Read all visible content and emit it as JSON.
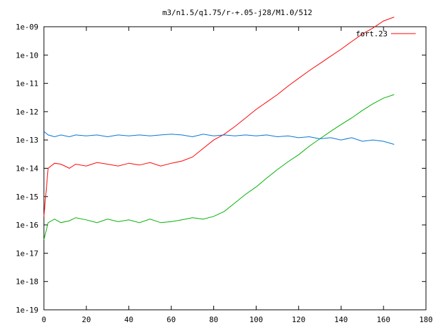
{
  "chart_data": {
    "type": "line",
    "title": "m3/n1.5/q1.75/r-+.05-j28/M1.0/512",
    "xlabel": "",
    "ylabel": "",
    "xlim": [
      0,
      180
    ],
    "ylim": [
      1e-19,
      1e-09
    ],
    "yscale": "log",
    "grid": false,
    "legend": "top-right",
    "x_ticks": [
      0,
      20,
      40,
      60,
      80,
      100,
      120,
      140,
      160,
      180
    ],
    "x_tick_labels": [
      "0",
      "20",
      "40",
      "60",
      "80",
      "100",
      "120",
      "140",
      "160",
      "180"
    ],
    "y_ticks": [
      1e-19,
      1e-18,
      1e-17,
      1e-16,
      1e-15,
      1e-14,
      1e-13,
      1e-12,
      1e-11,
      1e-10,
      1e-09
    ],
    "y_tick_labels": [
      "1e-19",
      "1e-18",
      "1e-17",
      "1e-16",
      "1e-15",
      "1e-14",
      "1e-13",
      "1e-12",
      "1e-11",
      "1e-10",
      "1e-09"
    ],
    "series": [
      {
        "name": "fort.23",
        "color": "#ff0000",
        "x": [
          0,
          2,
          5,
          8,
          12,
          15,
          20,
          25,
          30,
          35,
          40,
          45,
          50,
          55,
          60,
          65,
          70,
          75,
          80,
          85,
          90,
          95,
          100,
          105,
          110,
          115,
          120,
          125,
          130,
          135,
          140,
          145,
          150,
          155,
          160,
          165
        ],
        "y": [
          2e-16,
          1e-14,
          1.5e-14,
          1.4e-14,
          1e-14,
          1.4e-14,
          1.2e-14,
          1.6e-14,
          1.4e-14,
          1.2e-14,
          1.5e-14,
          1.3e-14,
          1.6e-14,
          1.2e-14,
          1.5e-14,
          1.8e-14,
          2.5e-14,
          5e-14,
          1e-13,
          1.6e-13,
          3e-13,
          6e-13,
          1.2e-12,
          2.2e-12,
          4e-12,
          8e-12,
          1.5e-11,
          2.8e-11,
          5e-11,
          9e-11,
          1.6e-10,
          3e-10,
          5.5e-10,
          9e-10,
          1.6e-09,
          2.2e-09
        ]
      },
      {
        "name": "",
        "color": "#00b000",
        "x": [
          0,
          2,
          5,
          8,
          12,
          15,
          20,
          25,
          30,
          35,
          40,
          45,
          50,
          55,
          60,
          65,
          70,
          75,
          80,
          85,
          90,
          95,
          100,
          105,
          110,
          115,
          120,
          125,
          130,
          135,
          140,
          145,
          150,
          155,
          160,
          165
        ],
        "y": [
          3e-17,
          1.2e-16,
          1.6e-16,
          1.2e-16,
          1.4e-16,
          1.8e-16,
          1.5e-16,
          1.2e-16,
          1.6e-16,
          1.3e-16,
          1.5e-16,
          1.2e-16,
          1.6e-16,
          1.2e-16,
          1.3e-16,
          1.5e-16,
          1.8e-16,
          1.6e-16,
          2e-16,
          3e-16,
          6e-16,
          1.2e-15,
          2.2e-15,
          4.5e-15,
          9e-15,
          1.7e-14,
          3e-14,
          6e-14,
          1.1e-13,
          2e-13,
          3.5e-13,
          6e-13,
          1.1e-12,
          1.9e-12,
          3e-12,
          4e-12
        ]
      },
      {
        "name": "",
        "color": "#0072d6",
        "x": [
          0,
          2,
          5,
          8,
          12,
          15,
          20,
          25,
          30,
          35,
          40,
          45,
          50,
          55,
          60,
          65,
          70,
          75,
          80,
          85,
          90,
          95,
          100,
          105,
          110,
          115,
          120,
          125,
          130,
          135,
          140,
          145,
          150,
          155,
          160,
          165
        ],
        "y": [
          2e-13,
          1.5e-13,
          1.3e-13,
          1.5e-13,
          1.3e-13,
          1.5e-13,
          1.4e-13,
          1.5e-13,
          1.3e-13,
          1.5e-13,
          1.4e-13,
          1.5e-13,
          1.4e-13,
          1.5e-13,
          1.6e-13,
          1.5e-13,
          1.3e-13,
          1.6e-13,
          1.4e-13,
          1.5e-13,
          1.4e-13,
          1.5e-13,
          1.4e-13,
          1.5e-13,
          1.3e-13,
          1.4e-13,
          1.2e-13,
          1.3e-13,
          1.1e-13,
          1.2e-13,
          1e-13,
          1.2e-13,
          9e-14,
          1e-13,
          9e-14,
          7e-14
        ]
      }
    ]
  }
}
